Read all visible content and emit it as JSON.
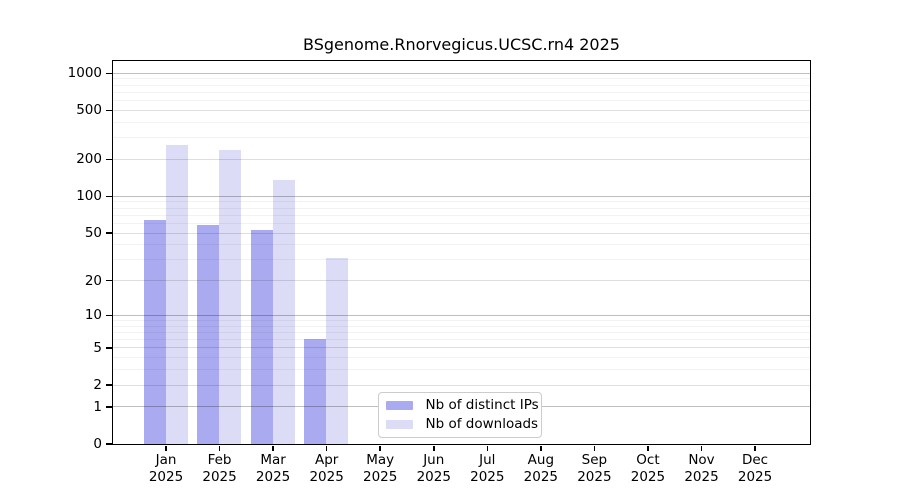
{
  "title": "BSgenome.Rnorvegicus.UCSC.rn4 2025",
  "chart_data": {
    "type": "bar",
    "title": "BSgenome.Rnorvegicus.UCSC.rn4 2025",
    "xlabel": "",
    "ylabel": "",
    "scale": "log10(1+x)",
    "grid": true,
    "legend_position": "inside-bottom-center",
    "year": "2025",
    "categories": [
      "Jan",
      "Feb",
      "Mar",
      "Apr",
      "May",
      "Jun",
      "Jul",
      "Aug",
      "Sep",
      "Oct",
      "Nov",
      "Dec"
    ],
    "y_ticks": [
      0,
      1,
      2,
      5,
      10,
      20,
      50,
      100,
      200,
      500,
      1000
    ],
    "ylim": [
      0,
      1260
    ],
    "series": [
      {
        "name": "Nb of distinct IPs",
        "color": "#aaaaf0",
        "values": [
          64,
          58,
          52,
          6,
          0,
          0,
          0,
          0,
          0,
          0,
          0,
          0
        ]
      },
      {
        "name": "Nb of downloads",
        "color": "#dcdcf7",
        "values": [
          258,
          235,
          134,
          31,
          0,
          0,
          0,
          0,
          0,
          0,
          0,
          0
        ]
      }
    ]
  }
}
